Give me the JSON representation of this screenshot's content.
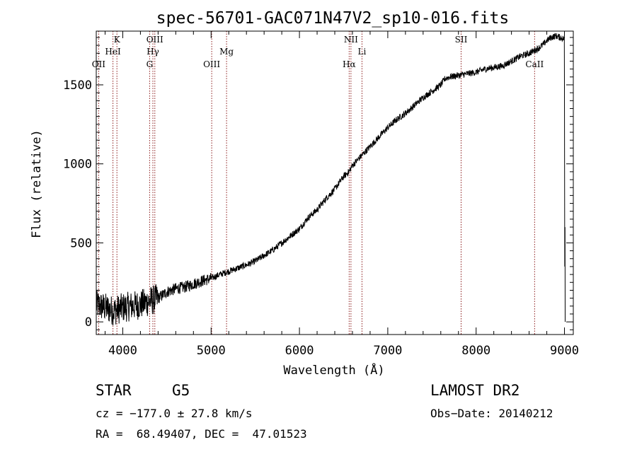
{
  "chart_data": {
    "type": "line",
    "title": "spec-56701-GAC071N47V2_sp10-016.fits",
    "xlabel": "Wavelength (Å)",
    "ylabel": "Flux (relative)",
    "xlim": [
      3700,
      9100
    ],
    "ylim": [
      -80,
      1840
    ],
    "x_ticks": [
      4000,
      5000,
      6000,
      7000,
      8000,
      9000
    ],
    "y_ticks": [
      0,
      500,
      1000,
      1500
    ],
    "grid": false,
    "series": [
      {
        "x": [
          3700,
          3750,
          3800,
          3850,
          3900,
          3950,
          4000,
          4100,
          4200,
          4300,
          4400,
          4500,
          4600,
          4700,
          4800,
          4900,
          5000,
          5100,
          5200,
          5300,
          5400,
          5500,
          5600,
          5700,
          5800,
          5900,
          6000,
          6100,
          6200,
          6300,
          6400,
          6500,
          6560,
          6600,
          6700,
          6800,
          6900,
          7000,
          7100,
          7200,
          7300,
          7400,
          7500,
          7600,
          7650,
          7700,
          7800,
          7900,
          8000,
          8100,
          8200,
          8300,
          8400,
          8500,
          8600,
          8700,
          8750,
          8800,
          8850,
          8900,
          8950,
          9000
        ],
        "y": [
          110,
          100,
          90,
          80,
          70,
          80,
          90,
          100,
          110,
          130,
          150,
          190,
          210,
          220,
          240,
          260,
          275,
          300,
          320,
          340,
          360,
          385,
          420,
          455,
          500,
          545,
          590,
          660,
          710,
          780,
          840,
          920,
          950,
          990,
          1050,
          1110,
          1170,
          1230,
          1280,
          1320,
          1370,
          1420,
          1460,
          1500,
          1540,
          1550,
          1560,
          1570,
          1580,
          1600,
          1610,
          1620,
          1650,
          1680,
          1700,
          1730,
          1750,
          1780,
          1800,
          1810,
          1800,
          1790
        ]
      }
    ],
    "lines": [
      {
        "label": "OII",
        "x": 3727
      },
      {
        "label": "K",
        "x": 3934
      },
      {
        "label": "HeI",
        "x": 3889
      },
      {
        "label": "G",
        "x": 4304
      },
      {
        "label": "Hγ",
        "x": 4341
      },
      {
        "label": "OIII",
        "x": 4363
      },
      {
        "label": "OIII",
        "x": 5007
      },
      {
        "label": "Mg",
        "x": 5175
      },
      {
        "label": "Hα",
        "x": 6563
      },
      {
        "label": "NII",
        "x": 6583
      },
      {
        "label": "Li",
        "x": 6708
      },
      {
        "label": "SII",
        "x": 7830
      },
      {
        "label": "CaII",
        "x": 8662
      }
    ]
  },
  "info": {
    "object_class": "STAR",
    "subclass": "G5",
    "survey": "LAMOST DR2",
    "cz": "cz = −177.0 ± 27.8 km/s",
    "obs_date": "Obs−Date: 20140212",
    "coords": "RA =  68.49407, DEC =  47.01523"
  },
  "colors": {
    "spectrum": "#000000",
    "line_markers": "#8b1a1a",
    "axes": "#000000",
    "background": "#ffffff"
  }
}
